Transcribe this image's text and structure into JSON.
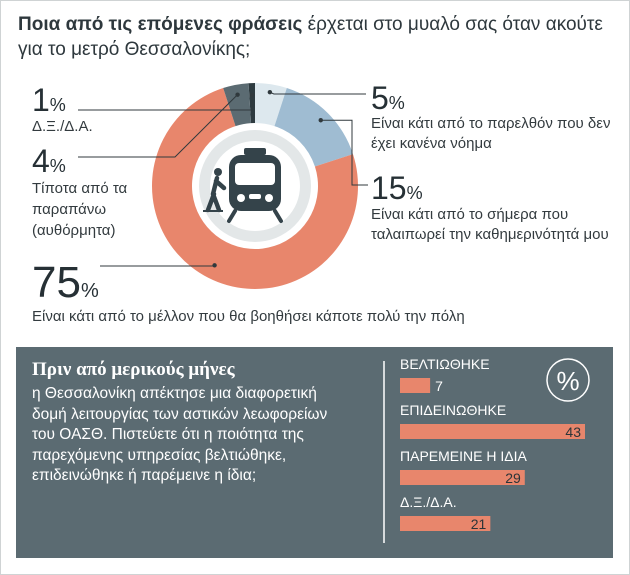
{
  "question": {
    "bold": "Ποια από τις επόμενες φράσεις",
    "rest": " έρχεται στο μυαλό σας όταν ακούτε για το μετρό Θεσσαλονίκης;"
  },
  "percent_symbol": "%",
  "icon": "metro-train-icon",
  "colors": {
    "future": "#e8866c",
    "today": "#9fbcd2",
    "past": "#dde8ee",
    "nothing": "#5b6b72",
    "dk": "#2e3b40",
    "panel": "#5b6b72",
    "bar": "#e8866c"
  },
  "chart_data": [
    {
      "type": "pie",
      "slices": [
        {
          "key": "dk",
          "value": 1,
          "label_value": "1",
          "label": "Δ.Ξ./Δ.Α."
        },
        {
          "key": "past",
          "value": 5,
          "label_value": "5",
          "label": "Είναι κάτι από το παρελθόν που δεν έχει κανένα νόημα"
        },
        {
          "key": "today",
          "value": 15,
          "label_value": "15",
          "label": "Είναι κάτι από το σήμερα που ταλαιπωρεί την καθημερινότητά μου"
        },
        {
          "key": "future",
          "value": 75,
          "label_value": "75",
          "label": "Είναι κάτι από το μέλλον που θα βοηθήσει κάποτε πολύ την πόλη"
        },
        {
          "key": "nothing",
          "value": 4,
          "label_value": "4",
          "label": "Τίποτα από τα παραπάνω (αυθόρμητα)"
        }
      ]
    },
    {
      "type": "bar",
      "title": "Πριν από μερικούς μήνες",
      "description": "η Θεσσαλονίκη απέκτησε μια διαφορετική δομή λειτουργίας των αστικών λεωφορείων του ΟΑΣΘ. Πιστεύετε ότι η ποιότητα της παρεχόμενης υπηρεσίας βελτιώθηκε, επιδεινώθηκε ή παρέμεινε η ίδια;",
      "unit": "%",
      "categories": [
        "ΒΕΛΤΙΩΘΗΚΕ",
        "ΕΠΙΔΕΙΝΩΘΗΚΕ",
        "ΠΑΡΕΜΕΙΝΕ Η ΙΔΙΑ",
        "Δ.Ξ./Δ.Α."
      ],
      "values": [
        7,
        43,
        29,
        21
      ],
      "xlim": [
        0,
        43
      ]
    }
  ]
}
